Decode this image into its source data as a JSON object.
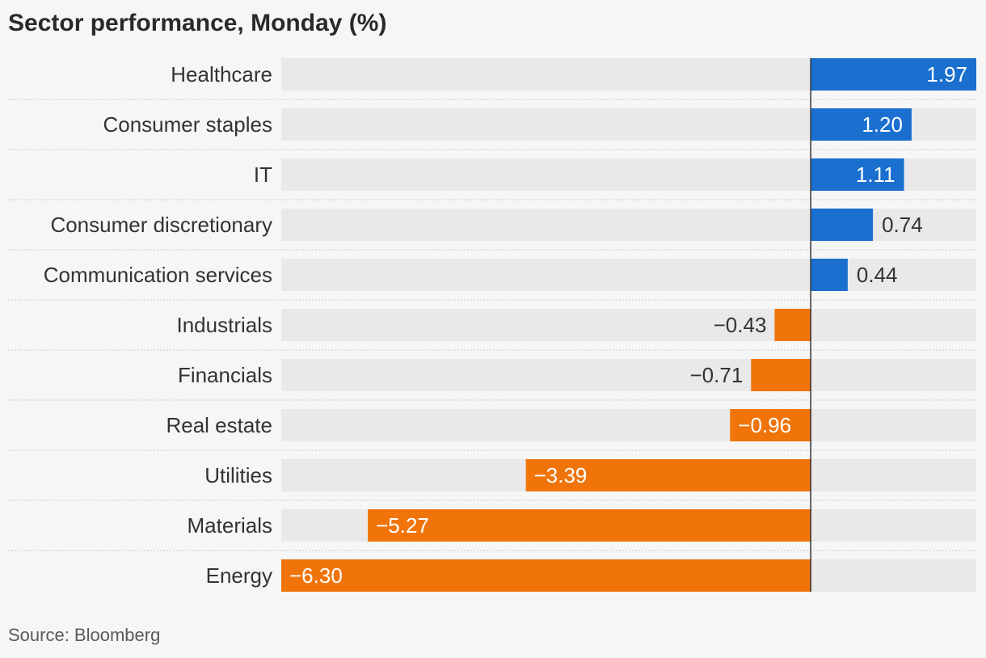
{
  "title": "Sector performance, Monday (%)",
  "source": "Source: Bloomberg",
  "colors": {
    "positive": "#1a6fcf",
    "negative": "#f0740a",
    "track": "#e9e9e9",
    "zero_line": "#333333",
    "divider": "#c8c8c8"
  },
  "chart_data": {
    "type": "bar",
    "orientation": "horizontal",
    "title": "Sector performance, Monday (%)",
    "categories": [
      "Healthcare",
      "Consumer staples",
      "IT",
      "Consumer discretionary",
      "Communication services",
      "Industrials",
      "Financials",
      "Real estate",
      "Utilities",
      "Materials",
      "Energy"
    ],
    "values": [
      1.97,
      1.2,
      1.11,
      0.74,
      0.44,
      -0.43,
      -0.71,
      -0.96,
      -3.39,
      -5.27,
      -6.3
    ],
    "value_labels": [
      "1.97",
      "1.20",
      "1.11",
      "0.74",
      "0.44",
      "−0.43",
      "−0.71",
      "−0.96",
      "−3.39",
      "−5.27",
      "−6.30"
    ],
    "xlim": [
      -6.3,
      1.97
    ],
    "grid": false,
    "legend": "none"
  }
}
